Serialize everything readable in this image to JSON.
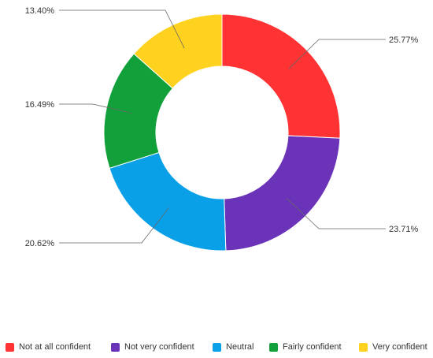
{
  "chart_data": {
    "type": "pie",
    "title": "",
    "legend_position": "bottom",
    "categories": [
      "Not at all confident",
      "Not very confident",
      "Neutral",
      "Fairly confident",
      "Very confident"
    ],
    "values": [
      25.77,
      23.71,
      20.62,
      16.49,
      13.4
    ],
    "value_labels": [
      "25.77%",
      "23.71%",
      "20.62%",
      "16.49%",
      "13.40%"
    ],
    "colors": [
      "#ff3333",
      "#6a33b8",
      "#0aa0e8",
      "#12a03a",
      "#ffd21f"
    ],
    "donut": true
  }
}
